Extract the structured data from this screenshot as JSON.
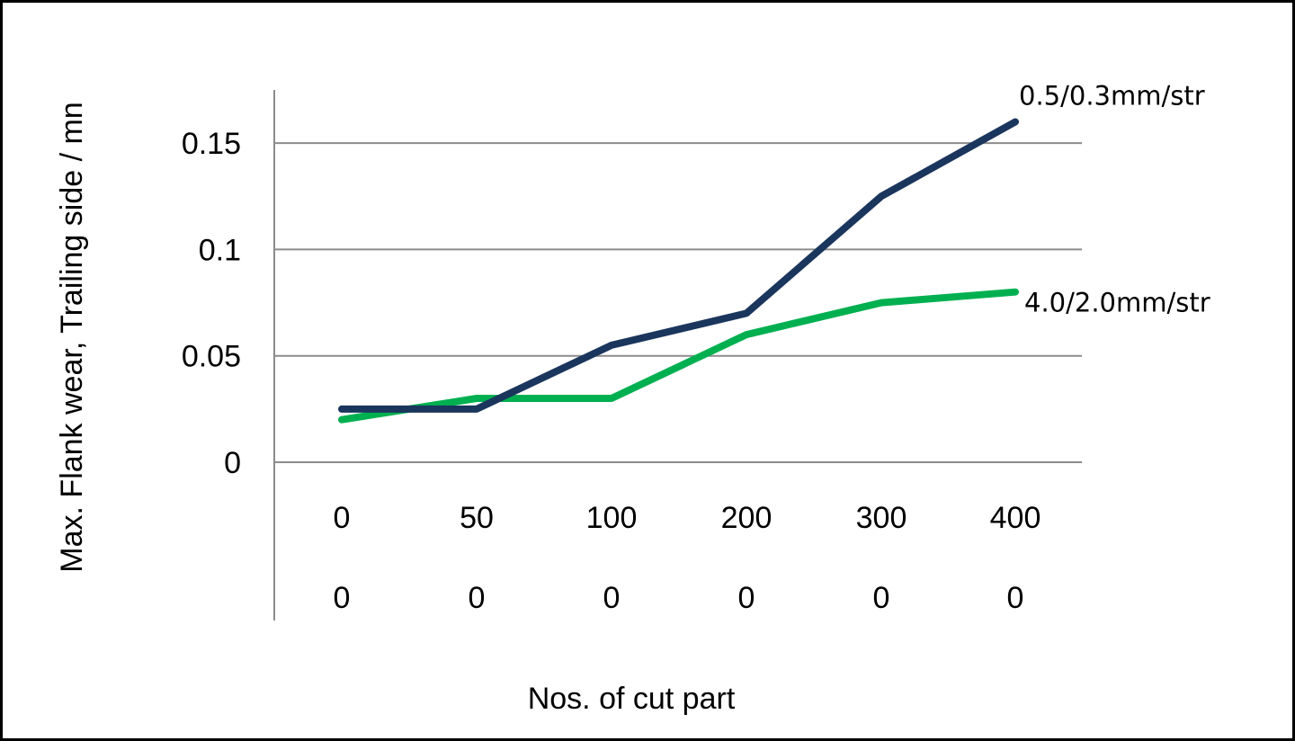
{
  "chart_data": {
    "type": "line",
    "xlabel": "Nos. of cut part",
    "ylabel": "Max. Flank wear, Trailing side / mn",
    "categories": [
      "0",
      "50",
      "100",
      "200",
      "300",
      "400"
    ],
    "category_sublabels": [
      "0",
      "0",
      "0",
      "0",
      "0",
      "0"
    ],
    "ylim": [
      0,
      0.175
    ],
    "yticks": [
      "0",
      "0.05",
      "0.1",
      "0.15"
    ],
    "ytick_values": [
      0,
      0.05,
      0.1,
      0.15
    ],
    "grid": true,
    "series": [
      {
        "name": "0.5/0.3mm/str",
        "color": "#1b365d",
        "values": [
          0.025,
          0.025,
          0.055,
          0.07,
          0.125,
          0.16
        ]
      },
      {
        "name": "4.0/2.0mm/str",
        "color": "#00b050",
        "values": [
          0.02,
          0.03,
          0.03,
          0.06,
          0.075,
          0.08
        ]
      }
    ]
  }
}
